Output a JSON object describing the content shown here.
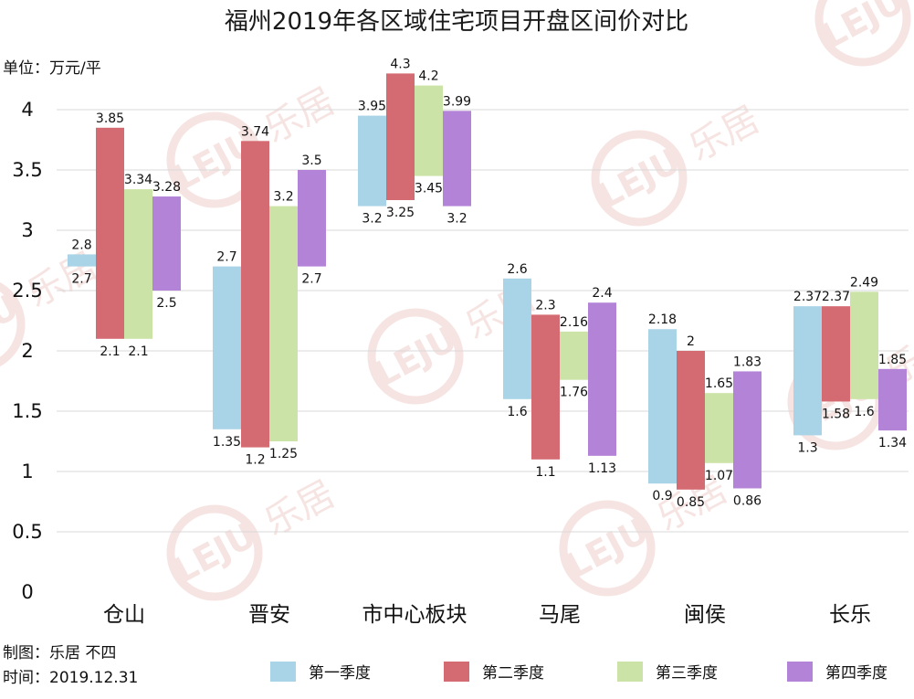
{
  "chart_data": {
    "type": "bar",
    "subtype": "floating-range",
    "title": "福州2019年各区域住宅项目开盘区间价对比",
    "unit_label": "单位：万元/平",
    "categories": [
      "仓山",
      "晋安",
      "市中心板块",
      "马尾",
      "闽侯",
      "长乐"
    ],
    "ylim": [
      0,
      4.3
    ],
    "yticks": [
      "0",
      "0.5",
      "1",
      "1.5",
      "2",
      "2.5",
      "3",
      "3.5",
      "4"
    ],
    "ytick_values": [
      0,
      0.5,
      1,
      1.5,
      2,
      2.5,
      3,
      3.5,
      4
    ],
    "grid": true,
    "legend_position": "bottom",
    "series": [
      {
        "name": "第一季度",
        "color": "#a9d3e6",
        "low": [
          2.7,
          1.35,
          3.2,
          1.6,
          0.9,
          1.3
        ],
        "high": [
          2.8,
          2.7,
          3.95,
          2.6,
          2.18,
          2.37
        ],
        "low_labels": [
          "2.7",
          "1.35",
          "3.2",
          "1.6",
          "0.9",
          "1.3"
        ],
        "high_labels": [
          "2.8",
          "2.7",
          "3.95",
          "2.6",
          "2.18",
          "2.37"
        ]
      },
      {
        "name": "第二季度",
        "color": "#d46a72",
        "low": [
          2.1,
          1.2,
          3.25,
          1.1,
          0.85,
          1.58
        ],
        "high": [
          3.85,
          3.74,
          4.3,
          2.3,
          2.0,
          2.37
        ],
        "low_labels": [
          "2.1",
          "1.2",
          "3.25",
          "1.1",
          "0.85",
          "1.58"
        ],
        "high_labels": [
          "3.85",
          "3.74",
          "4.3",
          "2.3",
          "2",
          "2.37"
        ]
      },
      {
        "name": "第三季度",
        "color": "#cbe3a6",
        "low": [
          2.1,
          1.25,
          3.45,
          1.76,
          1.07,
          1.6
        ],
        "high": [
          3.34,
          3.2,
          4.2,
          2.16,
          1.65,
          2.49
        ],
        "low_labels": [
          "2.1",
          "1.25",
          "3.45",
          "1.76",
          "1.07",
          "1.6"
        ],
        "high_labels": [
          "3.34",
          "3.2",
          "4.2",
          "2.16",
          "1.65",
          "2.49"
        ]
      },
      {
        "name": "第四季度",
        "color": "#b383d8",
        "low": [
          2.5,
          2.7,
          3.2,
          1.13,
          0.86,
          1.34
        ],
        "high": [
          3.28,
          3.5,
          3.99,
          2.4,
          1.83,
          1.85
        ],
        "low_labels": [
          "2.5",
          "2.7",
          "3.2",
          "1.13",
          "0.86",
          "1.34"
        ],
        "high_labels": [
          "3.28",
          "3.5",
          "3.99",
          "2.4",
          "1.83",
          "1.85"
        ]
      }
    ]
  },
  "credits": {
    "maker": "制图：乐居 不四",
    "date": "时间：2019.12.31"
  },
  "watermark": {
    "logo_text": "LEJU",
    "brand_text": "乐居"
  }
}
